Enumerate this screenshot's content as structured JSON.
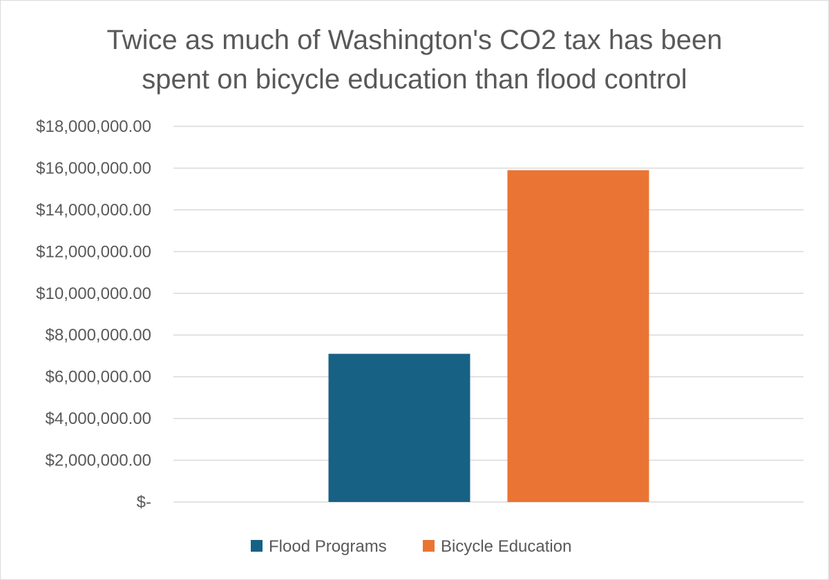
{
  "chart_data": {
    "type": "bar",
    "title_lines": [
      "Twice as much of Washington's CO2 tax has been",
      "spent on bicycle education than flood control"
    ],
    "categories": [
      "Flood Programs",
      "Bicycle Education"
    ],
    "values": [
      7100000,
      15900000
    ],
    "colors": [
      "#176184",
      "#EA7433"
    ],
    "ylim": [
      0,
      18000000
    ],
    "y_ticks": [
      {
        "value": 0,
        "label": "$-"
      },
      {
        "value": 2000000,
        "label": "$2,000,000.00"
      },
      {
        "value": 4000000,
        "label": "$4,000,000.00"
      },
      {
        "value": 6000000,
        "label": "$6,000,000.00"
      },
      {
        "value": 8000000,
        "label": "$8,000,000.00"
      },
      {
        "value": 10000000,
        "label": "$10,000,000.00"
      },
      {
        "value": 12000000,
        "label": "$12,000,000.00"
      },
      {
        "value": 14000000,
        "label": "$14,000,000.00"
      },
      {
        "value": 16000000,
        "label": "$16,000,000.00"
      },
      {
        "value": 18000000,
        "label": "$18,000,000.00"
      }
    ],
    "grid": true,
    "legend_position": "bottom",
    "legend": [
      {
        "name": "Flood Programs",
        "color": "#176184"
      },
      {
        "name": "Bicycle Education",
        "color": "#EA7433"
      }
    ]
  }
}
